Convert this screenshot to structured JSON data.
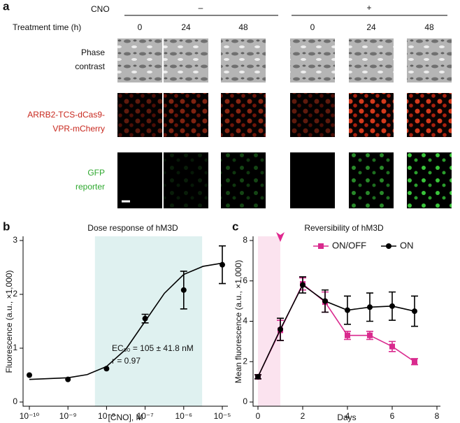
{
  "panel_a": {
    "label": "a",
    "row_header": "CNO",
    "col_header": "Treatment time (h)",
    "groups": [
      {
        "label": "–",
        "times": [
          0,
          24,
          48
        ]
      },
      {
        "label": "+",
        "times": [
          0,
          24,
          48
        ]
      }
    ],
    "rows": [
      [
        "Phase",
        "contrast"
      ],
      [
        "ARRB2-TCS-dCas9-",
        "VPR-mCherry"
      ],
      [
        "GFP",
        "reporter"
      ]
    ]
  },
  "chart_data": [
    {
      "type": "scatter",
      "panel": "b",
      "title": "Dose response of hM3D",
      "xlabel": "[CNO], M",
      "ylabel": "Fluorescence (a.u., ×1,000)",
      "xscale": "log",
      "xlim": [
        1e-10,
        1e-05
      ],
      "ylim": [
        0,
        3
      ],
      "xticks": [
        {
          "value": 1e-10,
          "label": "10⁻¹⁰"
        },
        {
          "value": 1e-09,
          "label": "10⁻⁹"
        },
        {
          "value": 1e-08,
          "label": "10⁻⁸"
        },
        {
          "value": 1e-07,
          "label": "10⁻⁷"
        },
        {
          "value": 1e-06,
          "label": "10⁻⁶"
        },
        {
          "value": 1e-05,
          "label": "10⁻⁵"
        }
      ],
      "yticks": [
        0,
        1,
        2,
        3
      ],
      "shade": [
        5e-09,
        3e-06
      ],
      "shade_color": "#dff1f0",
      "annotations": [
        "EC₅₀ = 105 ± 41.8 nM",
        "r = 0.97"
      ],
      "series": [
        {
          "type": "line",
          "color": "#000000",
          "x": [
            1e-10,
            1e-09,
            3.16e-09,
            1e-08,
            3.16e-08,
            1e-07,
            3.16e-07,
            1e-06,
            3.16e-06,
            1e-05
          ],
          "values": [
            0.42,
            0.45,
            0.51,
            0.66,
            0.98,
            1.5,
            2.02,
            2.37,
            2.52,
            2.58
          ]
        },
        {
          "type": "points",
          "marker": "circle",
          "color": "#000000",
          "x": [
            1e-10,
            1e-09,
            1e-08,
            1e-07,
            1e-06,
            1e-05
          ],
          "values": [
            0.5,
            0.42,
            0.62,
            1.55,
            2.08,
            2.55
          ],
          "errors": [
            0,
            0,
            0,
            0.08,
            0.35,
            0.35
          ]
        }
      ]
    },
    {
      "type": "line",
      "panel": "c",
      "title": "Reversibility of hM3D",
      "xlabel": "Days",
      "ylabel": "Mean fluorescence (a.u., ×1,000)",
      "xlim": [
        0,
        8
      ],
      "ylim": [
        0,
        8
      ],
      "xticks": [
        0,
        2,
        4,
        6,
        8
      ],
      "yticks": [
        0,
        2,
        4,
        6,
        8
      ],
      "shade": [
        0,
        1
      ],
      "shade_color": "#fbe3ef",
      "arrow_x": 1,
      "arrow_color": "#e0288f",
      "legend": "upper right",
      "x": [
        0,
        1,
        2,
        3,
        4,
        5,
        6,
        7
      ],
      "series": [
        {
          "name": "ON/OFF",
          "marker": "square",
          "color": "#d92a8e",
          "values": [
            1.25,
            3.55,
            5.85,
            4.95,
            3.3,
            3.3,
            2.75,
            2.0
          ],
          "errors": [
            0.1,
            0.5,
            0.3,
            0.5,
            0.2,
            0.2,
            0.25,
            0.15
          ]
        },
        {
          "name": "ON",
          "marker": "circle",
          "color": "#000000",
          "values": [
            1.25,
            3.6,
            5.8,
            5.0,
            4.55,
            4.7,
            4.75,
            4.5
          ],
          "errors": [
            0.1,
            0.55,
            0.4,
            0.55,
            0.7,
            0.7,
            0.7,
            0.75
          ]
        }
      ]
    }
  ]
}
